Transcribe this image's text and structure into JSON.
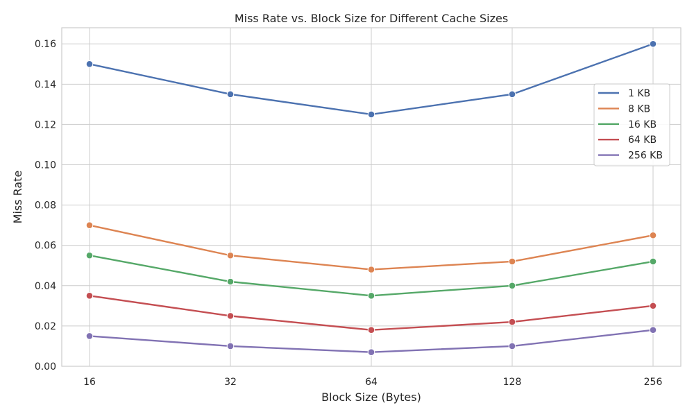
{
  "chart_data": {
    "type": "line",
    "title": "Miss Rate vs. Block Size for Different Cache Sizes",
    "xlabel": "Block Size (Bytes)",
    "ylabel": "Miss Rate",
    "x": [
      16,
      32,
      64,
      128,
      256
    ],
    "x_scale": "log2",
    "x_tick_labels": [
      "16",
      "32",
      "64",
      "128",
      "256"
    ],
    "ylim": [
      0,
      0.168
    ],
    "y_ticks": [
      0.0,
      0.02,
      0.04,
      0.06,
      0.08,
      0.1,
      0.12,
      0.14,
      0.16
    ],
    "y_tick_labels": [
      "0.00",
      "0.02",
      "0.04",
      "0.06",
      "0.08",
      "0.10",
      "0.12",
      "0.14",
      "0.16"
    ],
    "grid": true,
    "legend_position": "upper-right",
    "markers": "circle",
    "series": [
      {
        "name": "1 KB",
        "color": "#4c72b0",
        "values": [
          0.15,
          0.135,
          0.125,
          0.135,
          0.16
        ]
      },
      {
        "name": "8 KB",
        "color": "#dd8452",
        "values": [
          0.07,
          0.055,
          0.048,
          0.052,
          0.065
        ]
      },
      {
        "name": "16 KB",
        "color": "#55a868",
        "values": [
          0.055,
          0.042,
          0.035,
          0.04,
          0.052
        ]
      },
      {
        "name": "64 KB",
        "color": "#c44e52",
        "values": [
          0.035,
          0.025,
          0.018,
          0.022,
          0.03
        ]
      },
      {
        "name": "256 KB",
        "color": "#8172b3",
        "values": [
          0.015,
          0.01,
          0.007,
          0.01,
          0.018
        ]
      }
    ]
  }
}
